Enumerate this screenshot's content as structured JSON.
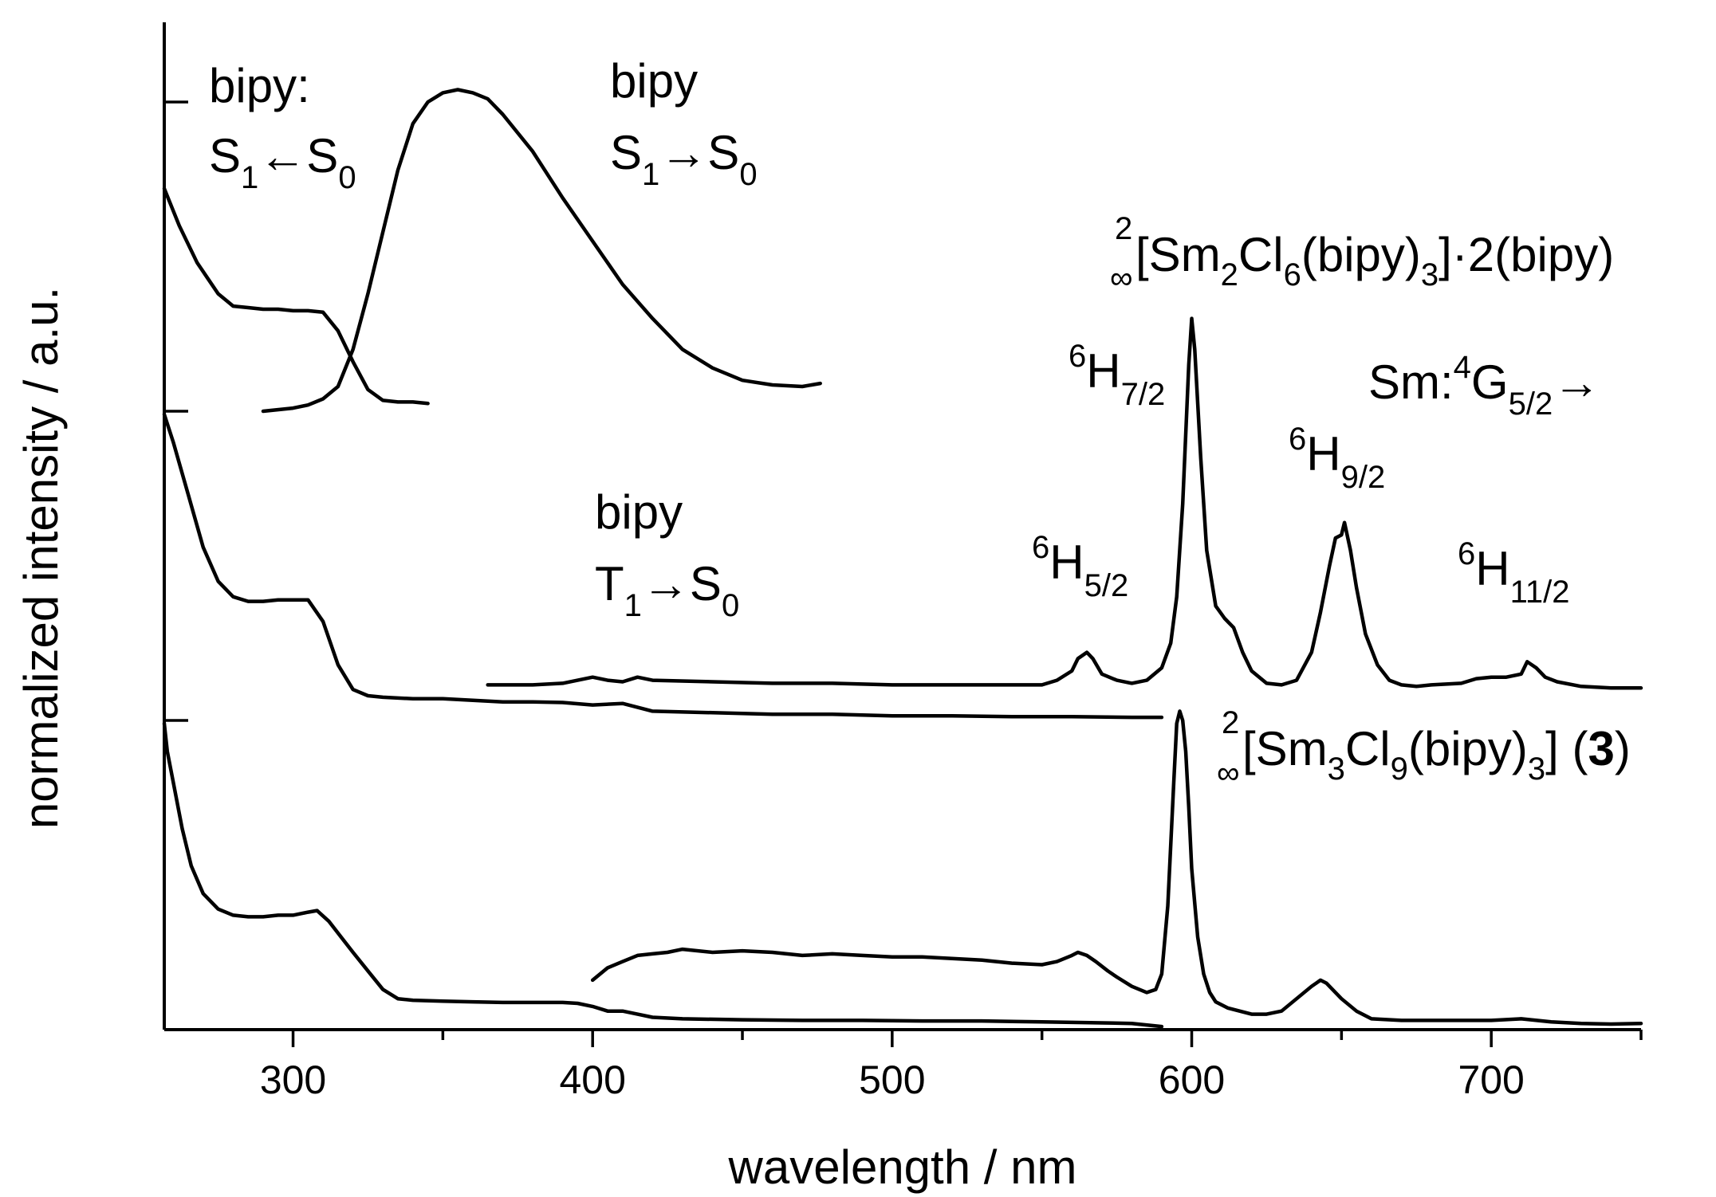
{
  "chart_data": {
    "type": "line",
    "title": "",
    "xlabel": "wavelength / nm",
    "ylabel": "normalized intensity / a.u.",
    "xlim": [
      257,
      750
    ],
    "ylim": [
      0,
      3.1
    ],
    "x_ticks": [
      300,
      400,
      500,
      600,
      700
    ],
    "x_tick_labels": [
      "300",
      "400",
      "500",
      "600",
      "700"
    ],
    "y_ticks": [
      0,
      1,
      2,
      3
    ],
    "grid": false,
    "legend": "none",
    "annotations": {
      "bipy_abs": {
        "line1": "bipy:",
        "s": "S",
        "s_sub": "1",
        "arrow": "←",
        "s2": "S",
        "s2_sub": "0"
      },
      "bipy_s1": {
        "line1": "bipy",
        "s": "S",
        "s_sub": "1",
        "arrow": "→",
        "s2": "S",
        "s2_sub": "0"
      },
      "bipy_t1": {
        "line1": "bipy",
        "t": "T",
        "t_sub": "1",
        "arrow": "→",
        "s2": "S",
        "s2_sub": "0"
      },
      "compound_top": {
        "sup": "2",
        "inf": "∞",
        "p1": "[Sm",
        "s1": "2",
        "p2": "Cl",
        "s2": "6",
        "p3": "(bipy)",
        "s3": "3",
        "p4": "]·2(bipy)"
      },
      "compound_bottom": {
        "sup": "2",
        "inf": "∞",
        "p1": "[Sm",
        "s1": "3",
        "p2": "Cl",
        "s2": "9",
        "p3": "(bipy)",
        "s3": "3",
        "p4": "] (",
        "bold": "3",
        "p5": ")"
      },
      "sm_transition": {
        "p1": "Sm:",
        "sup": "4",
        "g": "G",
        "sub": "5/2",
        "arrow": "→"
      },
      "h72": {
        "sup": "6",
        "h": "H",
        "sub": "7/2"
      },
      "h92": {
        "sup": "6",
        "h": "H",
        "sub": "9/2"
      },
      "h52": {
        "sup": "6",
        "h": "H",
        "sub": "5/2"
      },
      "h112": {
        "sup": "6",
        "h": "H",
        "sub": "11/2"
      }
    },
    "series": [
      {
        "x": [
          257,
          262,
          268,
          275,
          280,
          285,
          290,
          295,
          300,
          305,
          310,
          315,
          320,
          325,
          330,
          335,
          340,
          345
        ],
        "y": [
          2.72,
          2.6,
          2.48,
          2.38,
          2.34,
          2.335,
          2.33,
          2.33,
          2.325,
          2.325,
          2.32,
          2.26,
          2.16,
          2.07,
          2.035,
          2.03,
          2.03,
          2.025
        ]
      },
      {
        "x": [
          290,
          300,
          305,
          310,
          315,
          320,
          325,
          330,
          335,
          340,
          345,
          350,
          355,
          360,
          365,
          370,
          380,
          390,
          400,
          410,
          420,
          430,
          440,
          450,
          460,
          470,
          476
        ],
        "y": [
          2.0,
          2.01,
          2.02,
          2.04,
          2.08,
          2.2,
          2.38,
          2.58,
          2.78,
          2.93,
          3.0,
          3.03,
          3.04,
          3.03,
          3.01,
          2.96,
          2.84,
          2.69,
          2.55,
          2.41,
          2.3,
          2.2,
          2.14,
          2.1,
          2.085,
          2.08,
          2.09
        ]
      },
      {
        "x": [
          257,
          260,
          265,
          270,
          275,
          280,
          285,
          290,
          295,
          300,
          305,
          310,
          315,
          320,
          325,
          330,
          340,
          350,
          360,
          370,
          380,
          390,
          400,
          410,
          420,
          440,
          460,
          480,
          500,
          520,
          540,
          560,
          580,
          590
        ],
        "y": [
          1.99,
          1.9,
          1.73,
          1.56,
          1.45,
          1.4,
          1.385,
          1.385,
          1.39,
          1.39,
          1.39,
          1.32,
          1.18,
          1.1,
          1.08,
          1.075,
          1.07,
          1.07,
          1.065,
          1.06,
          1.06,
          1.058,
          1.05,
          1.055,
          1.03,
          1.025,
          1.02,
          1.02,
          1.015,
          1.015,
          1.012,
          1.012,
          1.01,
          1.01
        ]
      },
      {
        "x": [
          365,
          380,
          390,
          400,
          405,
          410,
          415,
          420,
          440,
          460,
          480,
          500,
          520,
          540,
          550,
          555,
          560,
          562,
          565,
          567,
          570,
          575,
          580,
          585,
          590,
          593,
          595,
          597,
          599,
          600,
          601,
          603,
          605,
          608,
          611,
          614,
          617,
          620,
          625,
          630,
          635,
          640,
          643,
          646,
          648,
          650,
          651,
          653,
          655,
          658,
          662,
          666,
          670,
          675,
          680,
          690,
          695,
          700,
          705,
          710,
          712,
          715,
          718,
          722,
          730,
          740,
          750
        ],
        "y": [
          1.115,
          1.115,
          1.12,
          1.14,
          1.13,
          1.125,
          1.14,
          1.13,
          1.125,
          1.12,
          1.12,
          1.115,
          1.115,
          1.115,
          1.115,
          1.13,
          1.16,
          1.2,
          1.22,
          1.2,
          1.15,
          1.13,
          1.12,
          1.13,
          1.17,
          1.25,
          1.4,
          1.7,
          2.15,
          2.3,
          2.2,
          1.85,
          1.55,
          1.37,
          1.33,
          1.3,
          1.22,
          1.16,
          1.12,
          1.115,
          1.13,
          1.22,
          1.35,
          1.5,
          1.59,
          1.6,
          1.64,
          1.55,
          1.43,
          1.28,
          1.18,
          1.13,
          1.115,
          1.11,
          1.115,
          1.12,
          1.135,
          1.14,
          1.14,
          1.15,
          1.19,
          1.17,
          1.14,
          1.125,
          1.11,
          1.105,
          1.105
        ]
      },
      {
        "x": [
          257,
          258,
          260,
          263,
          266,
          270,
          275,
          280,
          285,
          290,
          295,
          300,
          305,
          308,
          312,
          316,
          320,
          325,
          330,
          335,
          340,
          350,
          360,
          370,
          380,
          390,
          395,
          400,
          405,
          410,
          415,
          420,
          430,
          450,
          470,
          490,
          510,
          530,
          550,
          570,
          580,
          590
        ],
        "y": [
          0.99,
          0.9,
          0.8,
          0.65,
          0.53,
          0.44,
          0.39,
          0.37,
          0.365,
          0.365,
          0.37,
          0.37,
          0.38,
          0.385,
          0.35,
          0.3,
          0.25,
          0.19,
          0.13,
          0.1,
          0.095,
          0.092,
          0.09,
          0.088,
          0.088,
          0.088,
          0.085,
          0.075,
          0.06,
          0.06,
          0.05,
          0.04,
          0.035,
          0.032,
          0.03,
          0.03,
          0.028,
          0.028,
          0.025,
          0.022,
          0.02,
          0.01
        ]
      },
      {
        "x": [
          400,
          405,
          410,
          415,
          420,
          425,
          430,
          440,
          450,
          460,
          470,
          480,
          490,
          500,
          510,
          520,
          530,
          540,
          550,
          555,
          560,
          562,
          565,
          568,
          572,
          575,
          580,
          585,
          588,
          590,
          592,
          594,
          595,
          596,
          597,
          598,
          599,
          600,
          602,
          604,
          606,
          608,
          612,
          616,
          620,
          625,
          630,
          635,
          640,
          643,
          645,
          648,
          650,
          655,
          660,
          670,
          680,
          690,
          700,
          710,
          720,
          730,
          740,
          750
        ],
        "y": [
          0.16,
          0.2,
          0.22,
          0.24,
          0.245,
          0.25,
          0.26,
          0.25,
          0.255,
          0.25,
          0.24,
          0.245,
          0.24,
          0.235,
          0.235,
          0.23,
          0.225,
          0.215,
          0.21,
          0.22,
          0.24,
          0.25,
          0.24,
          0.22,
          0.19,
          0.17,
          0.14,
          0.12,
          0.13,
          0.18,
          0.4,
          0.8,
          0.99,
          1.03,
          1.0,
          0.9,
          0.72,
          0.52,
          0.3,
          0.18,
          0.12,
          0.09,
          0.07,
          0.06,
          0.05,
          0.05,
          0.06,
          0.1,
          0.14,
          0.16,
          0.15,
          0.12,
          0.1,
          0.06,
          0.035,
          0.03,
          0.03,
          0.03,
          0.03,
          0.035,
          0.025,
          0.02,
          0.018,
          0.02
        ]
      }
    ]
  }
}
